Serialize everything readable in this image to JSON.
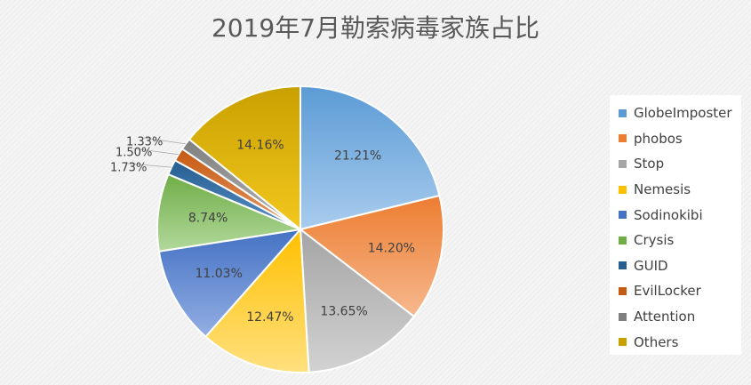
{
  "chart_data": {
    "type": "pie",
    "title": "2019年7月勒索病毒家族占比",
    "legend_position": "right",
    "categories": [
      "GlobeImposter",
      "phobos",
      "Stop",
      "Nemesis",
      "Sodinokibi",
      "Crysis",
      "GUID",
      "EvilLocker",
      "Attention",
      "Others"
    ],
    "values": [
      21.21,
      14.2,
      13.65,
      12.47,
      11.03,
      8.74,
      1.73,
      1.5,
      1.33,
      14.16
    ],
    "labels": [
      "21.21%",
      "14.20%",
      "13.65%",
      "12.47%",
      "11.03%",
      "8.74%",
      "1.73%",
      "1.50%",
      "1.33%",
      "14.16%"
    ],
    "colors": [
      "#5b9bd5",
      "#ed7d31",
      "#a5a5a5",
      "#ffc000",
      "#4472c4",
      "#70ad47",
      "#255e91",
      "#c55a11",
      "#7f7f7f",
      "#c9a000"
    ],
    "light_colors": [
      "#a9ccee",
      "#f6b88e",
      "#d2d2d2",
      "#ffe07f",
      "#93aee3",
      "#b2d99c",
      "#5b8fc5",
      "#e59868",
      "#b3b3b3",
      "#f2c81e"
    ]
  }
}
